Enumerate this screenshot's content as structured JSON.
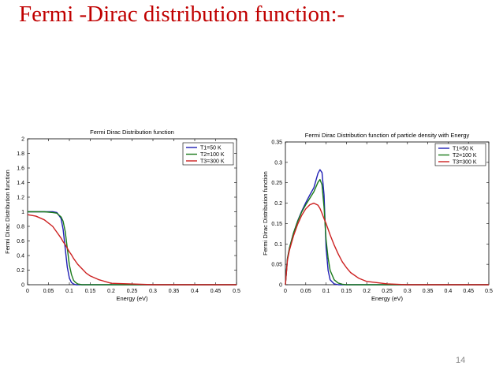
{
  "slide": {
    "title": "Fermi -Dirac distribution function:-",
    "page_number": "14",
    "title_color": "#c00000"
  },
  "series_colors": {
    "T1": "#1f1fb4",
    "T2": "#1a7a1a",
    "T3": "#cc2020"
  },
  "chart_data": [
    {
      "type": "line",
      "title": "Fermi Dirac Distribution function",
      "xlabel": "Energy (eV)",
      "ylabel": "Fermi Dirac Distribution function",
      "xlim": [
        0,
        0.5
      ],
      "ylim": [
        0,
        2
      ],
      "xticks": [
        0,
        0.05,
        0.1,
        0.15,
        0.2,
        0.25,
        0.3,
        0.35,
        0.4,
        0.45,
        0.5
      ],
      "xtick_labels": [
        "0",
        "0.05",
        "0.1",
        "0.15",
        "0.2",
        "0.25",
        "0.3",
        "0.35",
        "0.4",
        "0.45",
        "0.5"
      ],
      "yticks": [
        0,
        0.2,
        0.4,
        0.6,
        0.8,
        1,
        1.2,
        1.4,
        1.6,
        1.8,
        2
      ],
      "ytick_labels": [
        "0",
        "0.2",
        "0.4",
        "0.6",
        "0.8",
        "1",
        "1.2",
        "1.4",
        "1.6",
        "1.8",
        "2"
      ],
      "grid": false,
      "legend_position": "top-right",
      "x": [
        0,
        0.02,
        0.04,
        0.06,
        0.07,
        0.08,
        0.085,
        0.09,
        0.095,
        0.1,
        0.105,
        0.11,
        0.115,
        0.12,
        0.13,
        0.14,
        0.15,
        0.17,
        0.2,
        0.25,
        0.3,
        0.35,
        0.4,
        0.45,
        0.5
      ],
      "series": [
        {
          "name": "T1=50 K",
          "key": "T1",
          "values": [
            1,
            1,
            1,
            1,
            0.99,
            0.91,
            0.76,
            0.5,
            0.24,
            0.09,
            0.03,
            0.01,
            0,
            0,
            0,
            0,
            0,
            0,
            0,
            0,
            0,
            0,
            0,
            0,
            0
          ]
        },
        {
          "name": "T2=100 K",
          "key": "T2",
          "values": [
            1,
            1,
            1,
            0.99,
            0.98,
            0.93,
            0.87,
            0.73,
            0.5,
            0.27,
            0.14,
            0.06,
            0.03,
            0.01,
            0,
            0,
            0,
            0,
            0,
            0,
            0,
            0,
            0,
            0,
            0
          ]
        },
        {
          "name": "T3=300 K",
          "key": "T3",
          "values": [
            0.96,
            0.94,
            0.89,
            0.8,
            0.72,
            0.64,
            0.59,
            0.55,
            0.5,
            0.45,
            0.41,
            0.36,
            0.32,
            0.28,
            0.22,
            0.16,
            0.12,
            0.07,
            0.02,
            0.01,
            0,
            0,
            0,
            0,
            0
          ]
        }
      ]
    },
    {
      "type": "line",
      "title": "Fermi Dirac Distribution function of particle density with Energy",
      "xlabel": "Energy (eV)",
      "ylabel": "Fermi Dirac Distribution function",
      "xlim": [
        0,
        0.5
      ],
      "ylim": [
        0,
        0.35
      ],
      "xticks": [
        0,
        0.05,
        0.1,
        0.15,
        0.2,
        0.25,
        0.3,
        0.35,
        0.4,
        0.45,
        0.5
      ],
      "xtick_labels": [
        "0",
        "0.05",
        "0.1",
        "0.15",
        "0.2",
        "0.25",
        "0.3",
        "0.35",
        "0.4",
        "0.45",
        "0.5"
      ],
      "yticks": [
        0,
        0.05,
        0.1,
        0.15,
        0.2,
        0.25,
        0.3,
        0.35
      ],
      "ytick_labels": [
        "0",
        "0.05",
        "0.1",
        "0.15",
        "0.2",
        "0.25",
        "0.3",
        "0.35"
      ],
      "grid": false,
      "legend_position": "top-right",
      "x": [
        0,
        0.005,
        0.01,
        0.02,
        0.03,
        0.04,
        0.05,
        0.06,
        0.07,
        0.08,
        0.085,
        0.09,
        0.095,
        0.1,
        0.105,
        0.11,
        0.12,
        0.13,
        0.14,
        0.15,
        0.16,
        0.18,
        0.2,
        0.25,
        0.3,
        0.35,
        0.4,
        0.45,
        0.5
      ],
      "series": [
        {
          "name": "T1=50 K",
          "key": "T1",
          "values": [
            0,
            0.064,
            0.09,
            0.127,
            0.156,
            0.18,
            0.201,
            0.22,
            0.238,
            0.273,
            0.282,
            0.275,
            0.22,
            0.09,
            0.035,
            0.012,
            0.002,
            0,
            0,
            0,
            0,
            0,
            0,
            0,
            0,
            0,
            0,
            0,
            0
          ]
        },
        {
          "name": "T2=100 K",
          "key": "T2",
          "values": [
            0,
            0.064,
            0.09,
            0.127,
            0.155,
            0.178,
            0.196,
            0.212,
            0.228,
            0.251,
            0.258,
            0.245,
            0.19,
            0.11,
            0.065,
            0.035,
            0.012,
            0.004,
            0.001,
            0,
            0,
            0,
            0,
            0,
            0,
            0,
            0,
            0,
            0
          ]
        },
        {
          "name": "T3=300 K",
          "key": "T3",
          "values": [
            0,
            0.06,
            0.085,
            0.12,
            0.148,
            0.17,
            0.186,
            0.196,
            0.2,
            0.195,
            0.187,
            0.175,
            0.162,
            0.15,
            0.136,
            0.122,
            0.097,
            0.075,
            0.056,
            0.042,
            0.03,
            0.016,
            0.008,
            0.002,
            0,
            0,
            0,
            0,
            0
          ]
        }
      ]
    }
  ]
}
